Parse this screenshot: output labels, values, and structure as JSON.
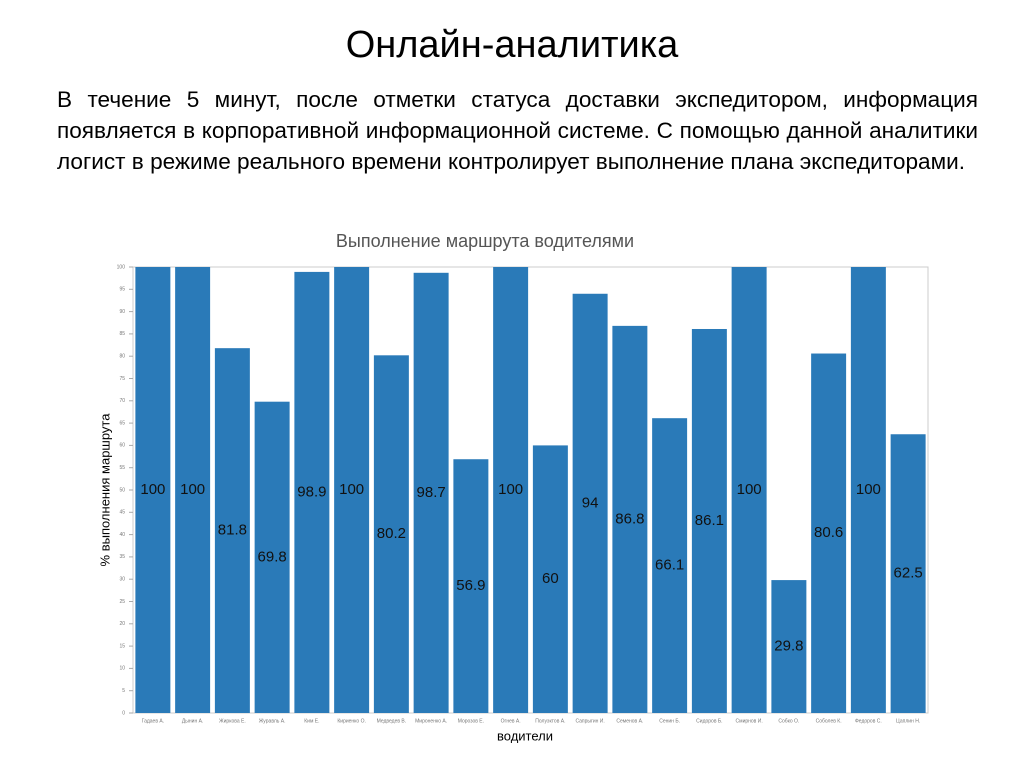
{
  "header": {
    "title": "Онлайн-аналитика"
  },
  "body": {
    "text": "В течение 5 минут, после отметки статуса доставки экспедитором, информация появляется в корпоративной информационной системе. С помощью данной аналитики логист в режиме реального времени контролирует выполнение плана экспедиторами."
  },
  "chart_data": {
    "type": "bar",
    "title": "Выполнение маршрута водителями",
    "x_label": "водители",
    "y_label": "% выполнения маршрута",
    "categories": [
      "Гадаев А.",
      "Дынин А.",
      "Жиркова Е.",
      "Журавль А.",
      "Ким Е.",
      "Кириенко О.",
      "Медведев В.",
      "Мироненко А.",
      "Морозов Е.",
      "Огнев А.",
      "Полуэктов А.",
      "Сапрыгин И.",
      "Семенов А.",
      "Сенин Б.",
      "Сидоров Б.",
      "Смирнов И.",
      "Собко О.",
      "Соболев К.",
      "Федоров С.",
      "Цаплин Н."
    ],
    "values": [
      100,
      100,
      81.8,
      69.8,
      98.9,
      100,
      80.2,
      98.7,
      56.9,
      100,
      60,
      94,
      86.8,
      66.1,
      86.1,
      100,
      29.8,
      80.6,
      100,
      62.5
    ],
    "color": "#2a7ab8",
    "ylim": [
      0,
      100
    ],
    "yticks": [
      0,
      5,
      10,
      15,
      20,
      25,
      30,
      35,
      40,
      45,
      50,
      55,
      60,
      65,
      70,
      75,
      80,
      85,
      90,
      95,
      100
    ],
    "grid": false
  }
}
